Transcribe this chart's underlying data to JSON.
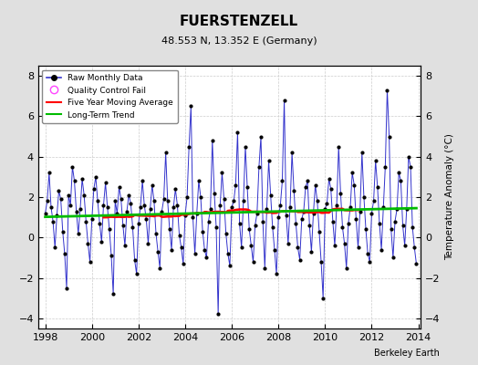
{
  "title": "FUERSTENZELL",
  "subtitle": "48.553 N, 13.352 E (Germany)",
  "ylabel": "Temperature Anomaly (°C)",
  "watermark": "Berkeley Earth",
  "x_start_year": 1998,
  "x_end_year": 2014,
  "ylim": [
    -4.5,
    8.5
  ],
  "yticks": [
    -4,
    -2,
    0,
    2,
    4,
    6,
    8
  ],
  "xticks": [
    1998,
    2000,
    2002,
    2004,
    2006,
    2008,
    2010,
    2012,
    2014
  ],
  "bg_color": "#e0e0e0",
  "plot_bg_color": "#ffffff",
  "raw_color": "#3333cc",
  "moving_avg_color": "#ff0000",
  "trend_color": "#00bb00",
  "qc_color": "#ff44ff",
  "seed": 42,
  "raw_values": [
    1.2,
    1.8,
    3.2,
    1.5,
    0.8,
    -0.5,
    1.1,
    2.3,
    1.9,
    0.3,
    -0.8,
    -2.5,
    2.1,
    1.6,
    3.5,
    2.8,
    1.3,
    0.2,
    1.4,
    2.9,
    2.1,
    0.8,
    -0.3,
    -1.2,
    0.9,
    2.4,
    3.0,
    1.8,
    0.7,
    -0.2,
    1.6,
    2.7,
    1.5,
    0.4,
    -0.9,
    -2.8,
    1.8,
    1.2,
    2.5,
    1.9,
    0.6,
    -0.4,
    1.3,
    2.1,
    1.7,
    0.5,
    -1.1,
    -1.8,
    0.7,
    1.5,
    2.8,
    1.6,
    0.9,
    -0.3,
    1.4,
    2.6,
    1.8,
    0.2,
    -0.7,
    -1.5,
    1.3,
    1.9,
    4.2,
    1.8,
    0.4,
    -0.6,
    1.5,
    2.4,
    1.6,
    0.1,
    -0.5,
    -1.3,
    1.1,
    2.0,
    4.5,
    6.5,
    1.0,
    -0.8,
    1.2,
    2.8,
    2.0,
    0.3,
    -0.6,
    -1.0,
    0.8,
    1.4,
    4.8,
    2.2,
    0.5,
    -3.8,
    1.6,
    3.2,
    1.9,
    0.2,
    -0.8,
    -1.4,
    1.5,
    1.8,
    2.6,
    5.2,
    0.7,
    -0.5,
    1.8,
    4.5,
    2.5,
    0.4,
    -0.4,
    -1.2,
    0.6,
    1.2,
    3.5,
    5.0,
    0.8,
    -1.5,
    1.4,
    3.8,
    2.1,
    0.5,
    -0.6,
    -1.8,
    1.0,
    1.6,
    2.8,
    6.8,
    1.1,
    -0.3,
    1.5,
    4.2,
    2.3,
    0.7,
    -0.5,
    -1.1,
    0.9,
    1.3,
    2.5,
    2.8,
    0.6,
    -0.7,
    1.2,
    2.6,
    1.8,
    0.3,
    -1.2,
    -3.0,
    1.4,
    1.7,
    2.9,
    2.4,
    0.8,
    -0.4,
    1.6,
    4.5,
    2.2,
    0.5,
    -0.3,
    -1.5,
    0.7,
    1.5,
    3.2,
    2.6,
    0.9,
    -0.5,
    1.3,
    4.2,
    2.0,
    0.4,
    -0.8,
    -1.2,
    1.2,
    1.8,
    3.8,
    2.5,
    0.7,
    -0.6,
    1.5,
    3.5,
    7.3,
    5.0,
    0.4,
    -1.0,
    0.8,
    1.4,
    3.2,
    2.8,
    0.6,
    -0.4,
    1.4,
    4.0,
    3.5,
    0.5,
    -0.5,
    -1.3
  ]
}
